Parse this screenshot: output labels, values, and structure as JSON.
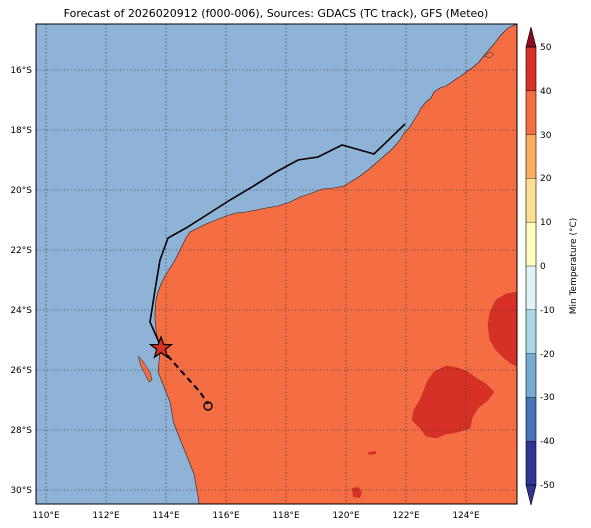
{
  "title": "Forecast of 2026020912 (f000-006), Sources: GDACS (TC track), GFS (Meteo)",
  "lon_ticks": [
    "110°E",
    "112°E",
    "114°E",
    "116°E",
    "118°E",
    "120°E",
    "122°E",
    "124°E"
  ],
  "lat_ticks": [
    "16°S",
    "18°S",
    "20°S",
    "22°S",
    "24°S",
    "26°S",
    "28°S",
    "30°S"
  ],
  "colorbar": {
    "label": "Min Temperature (°C)",
    "ticks": [
      "50",
      "40",
      "30",
      "20",
      "10",
      "0",
      "-10",
      "-20",
      "-30",
      "-40",
      "-50"
    ],
    "colors": [
      "#8e0a26",
      "#d73027",
      "#f46d43",
      "#fdae61",
      "#fee090",
      "#ffffbf",
      "#e0f3f8",
      "#abd9e9",
      "#74add1",
      "#4575b4",
      "#313695"
    ]
  },
  "map": {
    "ocean_color": "#8fb3d7",
    "land_color": "#f46d43",
    "warm_patch_color": "#d73027"
  },
  "track": {
    "past_line_style": "solid",
    "forecast_line_style": "dashed",
    "current_position_marker": "star",
    "forecast_position_marker": "circle"
  }
}
